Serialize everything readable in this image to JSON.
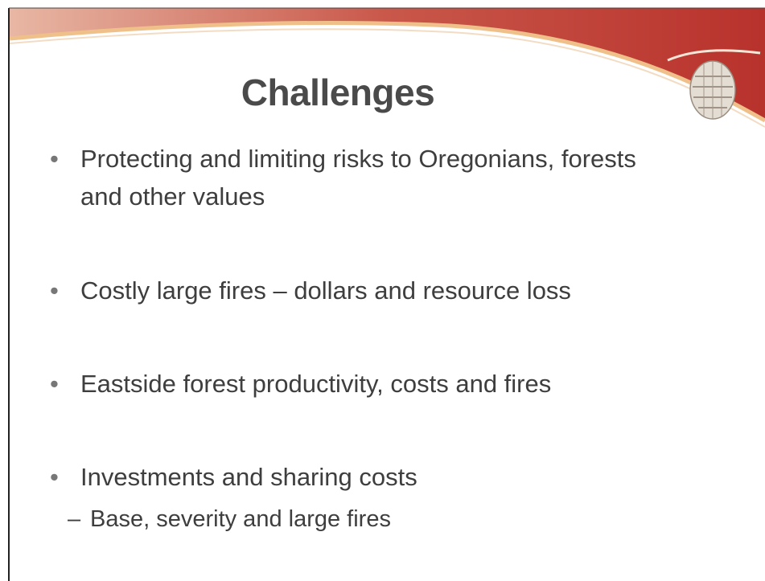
{
  "slide": {
    "title": "Challenges",
    "bullets": [
      {
        "text": "Protecting and limiting risks to Oregonians, forests and other values"
      },
      {
        "text": "Costly large fires – dollars and resource loss"
      },
      {
        "text": "Eastside forest productivity, costs and fires"
      },
      {
        "text": "Investments and sharing costs",
        "sub": [
          "Base, severity and large fires"
        ]
      }
    ]
  }
}
